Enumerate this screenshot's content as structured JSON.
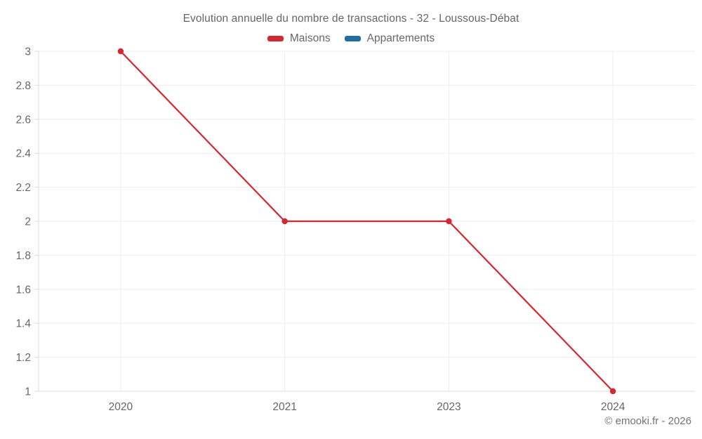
{
  "chart_data": {
    "type": "line",
    "title": "Evolution annuelle du nombre de transactions - 32 - Loussous-Débat",
    "categories": [
      "2020",
      "2021",
      "2023",
      "2024"
    ],
    "series": [
      {
        "name": "Maisons",
        "color": "#d8262c",
        "values": [
          3,
          2,
          2,
          1
        ]
      },
      {
        "name": "Appartements",
        "color": "#1c6ea4",
        "values": []
      }
    ],
    "ylim": [
      1,
      3
    ],
    "ytick_step": 0.2,
    "ytick_labels": [
      "1",
      "1.2",
      "1.4",
      "1.6",
      "1.8",
      "2",
      "2.2",
      "2.4",
      "2.6",
      "2.8",
      "3"
    ],
    "grid": true,
    "legend_position": "top",
    "xlabel": "",
    "ylabel": "",
    "grid_color": "#ededed",
    "axis_color": "#dcdcdc",
    "text_color": "#666666",
    "marker_radius": 4.2,
    "line_width": 2.2
  },
  "footer": "© emooki.fr - 2026"
}
